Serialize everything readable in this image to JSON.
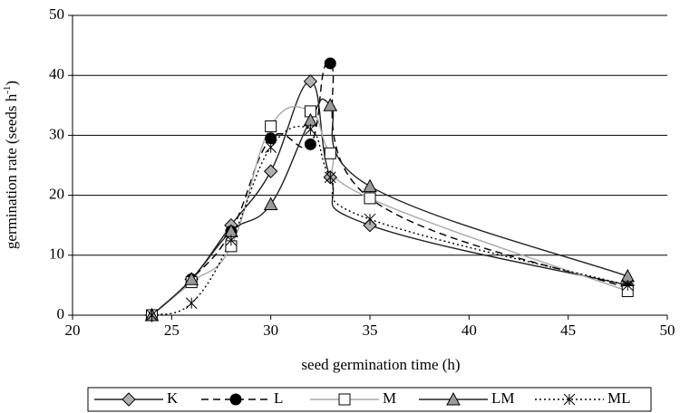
{
  "chart_data": {
    "type": "line",
    "x_label": "seed germination time (h)",
    "y_label": [
      "germination rate (seeds h",
      "-1",
      ")"
    ],
    "x": [
      24,
      26,
      28,
      30,
      32,
      33,
      35,
      48
    ],
    "xlim": [
      20,
      50
    ],
    "xticks": [
      20,
      25,
      30,
      35,
      40,
      45,
      50
    ],
    "ylim": [
      0,
      50
    ],
    "yticks": [
      0,
      10,
      20,
      30,
      40,
      50
    ],
    "grid": true,
    "legend": "bottom",
    "series": [
      {
        "name": "K",
        "color": "#222222",
        "marker": "diamond",
        "marker_fill": "#b0b0b0",
        "dash": "solid",
        "values": [
          0,
          6,
          15,
          24,
          39,
          23,
          15,
          5
        ]
      },
      {
        "name": "L",
        "color": "#000000",
        "marker": "circle",
        "marker_fill": "#000000",
        "dash": "dashed",
        "values": [
          0,
          6,
          14,
          29.5,
          28.5,
          42,
          19.5,
          4.5
        ]
      },
      {
        "name": "M",
        "color": "#a8a8a8",
        "marker": "square",
        "marker_fill": "#ffffff",
        "dash": "solid",
        "values": [
          0,
          5.5,
          11.5,
          31.5,
          34,
          27,
          19.5,
          4
        ]
      },
      {
        "name": "LM",
        "color": "#222222",
        "marker": "triangle",
        "marker_fill": "#9a9a9a",
        "dash": "solid",
        "values": [
          0,
          6,
          14,
          18.5,
          32.5,
          35,
          21.5,
          6.5
        ]
      },
      {
        "name": "ML",
        "color": "#000000",
        "marker": "star",
        "marker_fill": "none",
        "dash": "dotted",
        "values": [
          0,
          2,
          12.5,
          28,
          31,
          23,
          16,
          5
        ]
      }
    ]
  }
}
